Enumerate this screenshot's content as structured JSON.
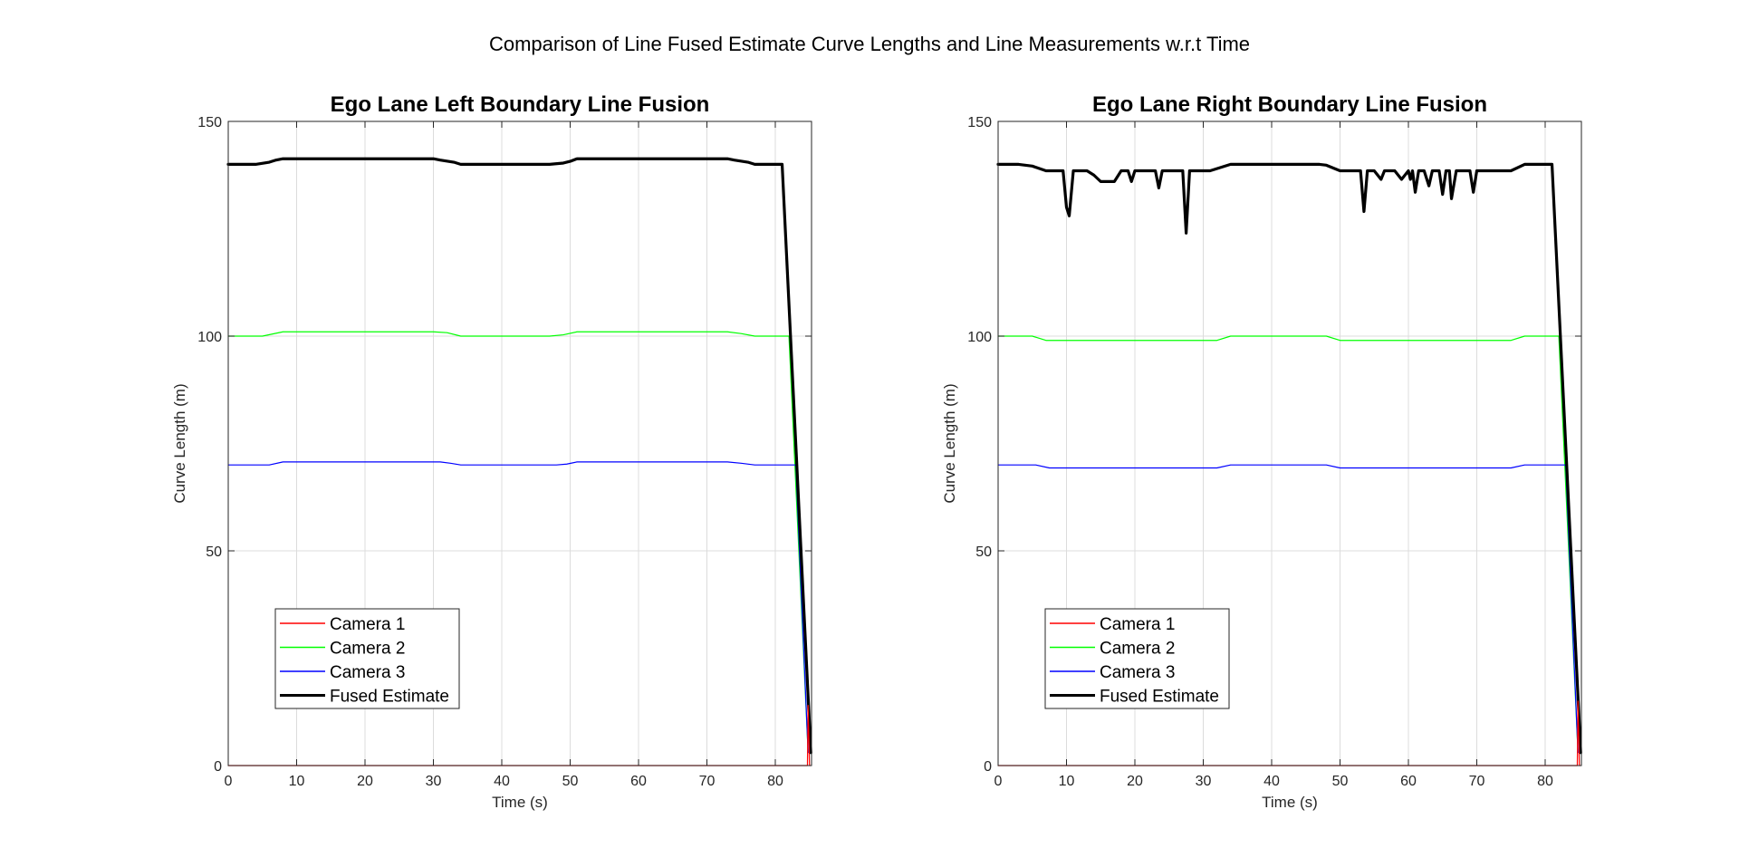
{
  "figure": {
    "suptitle": "Comparison of Line Fused Estimate Curve Lengths and Line Measurements w.r.t Time"
  },
  "colors": {
    "camera1": "#ff0000",
    "camera2": "#00ff00",
    "camera3": "#0000ff",
    "fused": "#000000",
    "grid": "#dcdcdc",
    "axes": "#262626"
  },
  "chart_data": [
    {
      "type": "line",
      "title": "Ego Lane Left Boundary Line Fusion",
      "xlabel": "Time (s)",
      "ylabel": "Curve Length (m)",
      "xlim": [
        0,
        85.3
      ],
      "ylim": [
        0,
        150
      ],
      "xticks": [
        0,
        10,
        20,
        30,
        40,
        50,
        60,
        70,
        80
      ],
      "yticks": [
        0,
        50,
        100,
        150
      ],
      "grid": true,
      "legend_location": "bottom-left",
      "series": [
        {
          "name": "Camera 1",
          "color": "#ff0000",
          "width": 1.2,
          "x": [
            0,
            84.7,
            84.8,
            85.0,
            85.1
          ],
          "y": [
            0,
            0,
            14,
            0,
            0
          ]
        },
        {
          "name": "Camera 2",
          "color": "#00ff00",
          "width": 1.2,
          "x": [
            0,
            5,
            8,
            30,
            32,
            34,
            47,
            49,
            51,
            73,
            75,
            77,
            82,
            84.8
          ],
          "y": [
            100,
            100,
            101,
            101,
            100.8,
            100,
            100,
            100.3,
            101,
            101,
            100.6,
            100,
            100,
            3
          ]
        },
        {
          "name": "Camera 3",
          "color": "#0000ff",
          "width": 1.2,
          "x": [
            0,
            6,
            8,
            31,
            32.5,
            34,
            48,
            49.5,
            51,
            73,
            75,
            77,
            83,
            84.8
          ],
          "y": [
            70,
            70,
            70.7,
            70.7,
            70.4,
            70,
            70,
            70.2,
            70.7,
            70.7,
            70.4,
            70,
            70,
            3
          ]
        },
        {
          "name": "Fused Estimate",
          "color": "#000000",
          "width": 3.2,
          "x": [
            0,
            4,
            6,
            7,
            8,
            30,
            31,
            33,
            34,
            47,
            49,
            50,
            51,
            73,
            74,
            76,
            77,
            81,
            85.2
          ],
          "y": [
            140,
            140,
            140.5,
            141,
            141.3,
            141.3,
            141,
            140.5,
            140,
            140,
            140.3,
            140.7,
            141.3,
            141.3,
            141,
            140.5,
            140,
            140,
            3
          ]
        }
      ]
    },
    {
      "type": "line",
      "title": "Ego Lane Right Boundary Line Fusion",
      "xlabel": "Time (s)",
      "ylabel": "Curve Length (m)",
      "xlim": [
        0,
        85.3
      ],
      "ylim": [
        0,
        150
      ],
      "xticks": [
        0,
        10,
        20,
        30,
        40,
        50,
        60,
        70,
        80
      ],
      "yticks": [
        0,
        50,
        100,
        150
      ],
      "grid": true,
      "legend_location": "bottom-left",
      "series": [
        {
          "name": "Camera 1",
          "color": "#ff0000",
          "width": 1.2,
          "x": [
            0,
            84.7,
            84.8,
            85.0,
            85.1
          ],
          "y": [
            0,
            0,
            15,
            0,
            0
          ]
        },
        {
          "name": "Camera 2",
          "color": "#00ff00",
          "width": 1.2,
          "x": [
            0,
            5,
            7,
            32,
            34,
            48,
            50,
            75,
            77,
            82,
            84.8
          ],
          "y": [
            100,
            100,
            99,
            99,
            100,
            100,
            99,
            99,
            100,
            100,
            3
          ]
        },
        {
          "name": "Camera 3",
          "color": "#0000ff",
          "width": 1.2,
          "x": [
            0,
            5.5,
            7.5,
            32,
            34,
            48,
            50,
            75,
            77,
            83,
            84.8
          ],
          "y": [
            70,
            70,
            69.3,
            69.3,
            70,
            70,
            69.3,
            69.3,
            70,
            70,
            3
          ]
        },
        {
          "name": "Fused Estimate",
          "color": "#000000",
          "width": 3.2,
          "x": [
            0,
            3,
            5,
            7,
            9.5,
            10,
            10.4,
            11,
            12,
            13,
            14,
            15,
            16,
            17,
            18,
            19,
            19.5,
            20,
            21,
            22,
            23,
            23.5,
            24,
            25,
            26,
            27,
            27.5,
            28,
            29,
            31,
            33,
            34,
            47,
            48,
            50,
            53,
            53.5,
            54,
            54.5,
            55,
            56,
            56.5,
            57,
            58,
            59,
            60,
            60.3,
            60.6,
            61,
            61.5,
            62,
            62.3,
            63,
            63.5,
            64,
            64.5,
            65,
            65.5,
            66,
            66.3,
            67,
            67.5,
            68,
            69,
            69.5,
            70,
            70.3,
            71,
            75,
            77,
            81,
            85.2
          ],
          "y": [
            140,
            140,
            139.6,
            138.5,
            138.5,
            130,
            128,
            138.5,
            138.5,
            138.5,
            137.5,
            136,
            136,
            136,
            138.5,
            138.5,
            136,
            138.5,
            138.5,
            138.5,
            138.5,
            134.5,
            138.5,
            138.5,
            138.5,
            138.5,
            124,
            138.5,
            138.5,
            138.5,
            139.5,
            140,
            140,
            139.8,
            138.5,
            138.5,
            129,
            138.5,
            138.5,
            138.5,
            136.5,
            138.5,
            138.5,
            138.5,
            136.5,
            138.5,
            136.5,
            138.5,
            133.5,
            138.5,
            138.5,
            138.5,
            135,
            138.5,
            138.5,
            138.5,
            133,
            138.5,
            138.5,
            132,
            138.5,
            138.5,
            138.5,
            138.5,
            133.5,
            138.5,
            138.5,
            138.5,
            138.5,
            140,
            140,
            3
          ]
        }
      ]
    }
  ]
}
